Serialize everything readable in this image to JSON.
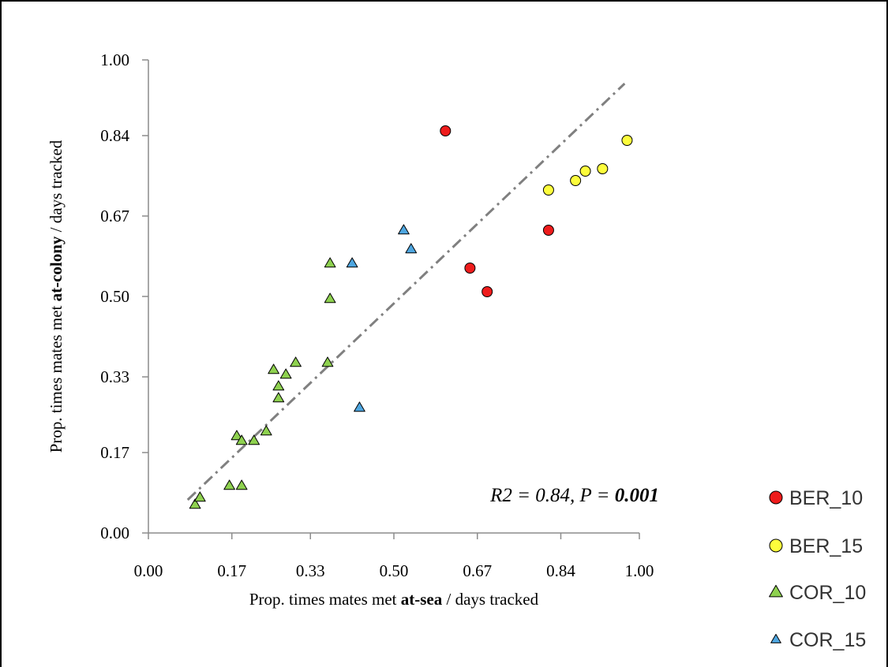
{
  "chart_data": {
    "type": "scatter",
    "title": "",
    "xlabel": {
      "prefix": "Prop. times mates met ",
      "bold": "at-sea",
      "suffix": " / days tracked"
    },
    "ylabel": {
      "prefix": "Prop. times mates met ",
      "bold": "at-colony",
      "suffix": " / days tracked"
    },
    "xlim": [
      0,
      1
    ],
    "ylim": [
      0,
      1
    ],
    "xticks": [
      0.0,
      0.17,
      0.33,
      0.5,
      0.67,
      0.84,
      1.0
    ],
    "xtick_labels": [
      "0.00",
      "0.17",
      "0.33",
      "0.50",
      "0.67",
      "0.84",
      "1.00"
    ],
    "yticks": [
      0.0,
      0.17,
      0.33,
      0.5,
      0.67,
      0.84,
      1.0
    ],
    "ytick_labels": [
      "0.00",
      "0.17",
      "0.33",
      "0.50",
      "0.67",
      "0.84",
      "1.00"
    ],
    "grid": false,
    "legend_position": "right-bottom",
    "annotation": {
      "text_italic": "R2 = 0.84, P = ",
      "text_bold_italic": "0.001"
    },
    "trendline": {
      "style": "dash-dot",
      "color": "#808080",
      "points": [
        [
          0.08,
          0.07
        ],
        [
          0.97,
          0.95
        ]
      ]
    },
    "series": [
      {
        "name": "BER_10",
        "marker": "circle",
        "color": "#ee1c1c",
        "points": [
          [
            0.605,
            0.85
          ],
          [
            0.655,
            0.56
          ],
          [
            0.69,
            0.51
          ],
          [
            0.815,
            0.64
          ]
        ]
      },
      {
        "name": "BER_15",
        "marker": "circle",
        "color": "#fdfd3c",
        "points": [
          [
            0.815,
            0.725
          ],
          [
            0.87,
            0.745
          ],
          [
            0.89,
            0.765
          ],
          [
            0.925,
            0.77
          ],
          [
            0.975,
            0.83
          ]
        ]
      },
      {
        "name": "COR_10",
        "marker": "triangle",
        "color": "#8ed14f",
        "points": [
          [
            0.095,
            0.06
          ],
          [
            0.105,
            0.075
          ],
          [
            0.165,
            0.1
          ],
          [
            0.19,
            0.1
          ],
          [
            0.18,
            0.205
          ],
          [
            0.19,
            0.195
          ],
          [
            0.215,
            0.195
          ],
          [
            0.24,
            0.215
          ],
          [
            0.255,
            0.345
          ],
          [
            0.265,
            0.31
          ],
          [
            0.265,
            0.285
          ],
          [
            0.28,
            0.335
          ],
          [
            0.3,
            0.36
          ],
          [
            0.365,
            0.36
          ],
          [
            0.37,
            0.57
          ],
          [
            0.37,
            0.495
          ]
        ]
      },
      {
        "name": "COR_15",
        "marker": "triangle",
        "color": "#4ea6e0",
        "points": [
          [
            0.415,
            0.57
          ],
          [
            0.43,
            0.265
          ],
          [
            0.52,
            0.64
          ],
          [
            0.535,
            0.6
          ]
        ]
      }
    ]
  }
}
